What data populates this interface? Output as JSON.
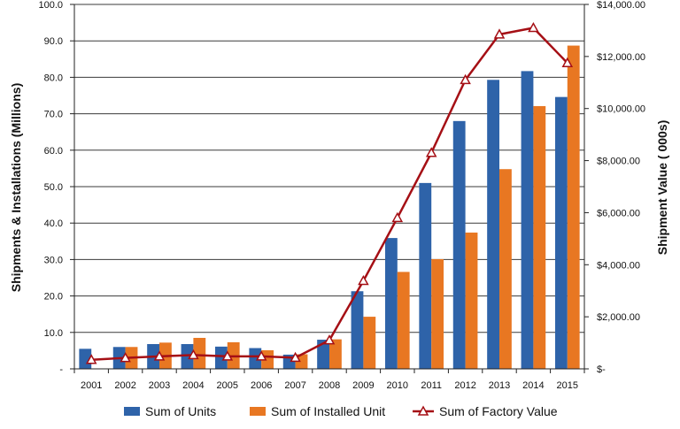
{
  "chart_data": {
    "type": "bar",
    "categories": [
      "2001",
      "2002",
      "2003",
      "2004",
      "2005",
      "2006",
      "2007",
      "2008",
      "2009",
      "2010",
      "2011",
      "2012",
      "2013",
      "2014",
      "2015"
    ],
    "series": [
      {
        "name": "Sum of Units",
        "type": "bar",
        "axis": "left",
        "color": "#2E63A9",
        "values": [
          5.5,
          6.0,
          6.8,
          6.8,
          6.1,
          5.7,
          3.9,
          8.0,
          21.3,
          35.9,
          51.0,
          68.0,
          79.3,
          81.7,
          74.6
        ]
      },
      {
        "name": "Sum of Installed Unit",
        "type": "bar",
        "axis": "left",
        "color": "#E87722",
        "values": [
          0,
          6.0,
          7.2,
          8.5,
          7.3,
          5.1,
          4.0,
          8.1,
          14.3,
          26.6,
          30.1,
          37.4,
          54.8,
          72.1,
          88.7
        ]
      },
      {
        "name": "Sum of Factory Value",
        "type": "line",
        "axis": "right",
        "color": "#A50F15",
        "values": [
          350,
          420,
          480,
          530,
          480,
          480,
          430,
          1100,
          3380,
          5800,
          8300,
          11100,
          12850,
          13100,
          11750
        ]
      }
    ],
    "xlabel": "",
    "ylabel": "Shipments & Installations (Millions)",
    "y2label": "Shipment Value ( 000s)",
    "ylim": [
      0,
      100
    ],
    "y2lim": [
      0,
      14000
    ],
    "yticks": [
      "-",
      "10.0",
      "20.0",
      "30.0",
      "40.0",
      "50.0",
      "60.0",
      "70.0",
      "80.0",
      "90.0",
      "100.0"
    ],
    "y2ticks": [
      "$-",
      "$2,000.00",
      "$4,000.00",
      "$6,000.00",
      "$8,000.00",
      "$10,000.00",
      "$12,000.00",
      "$14,000.00"
    ],
    "grid": true,
    "legend": "bottom",
    "legend_entries": [
      "Sum of Units",
      "Sum of Installed Unit",
      "Sum of Factory Value"
    ]
  }
}
